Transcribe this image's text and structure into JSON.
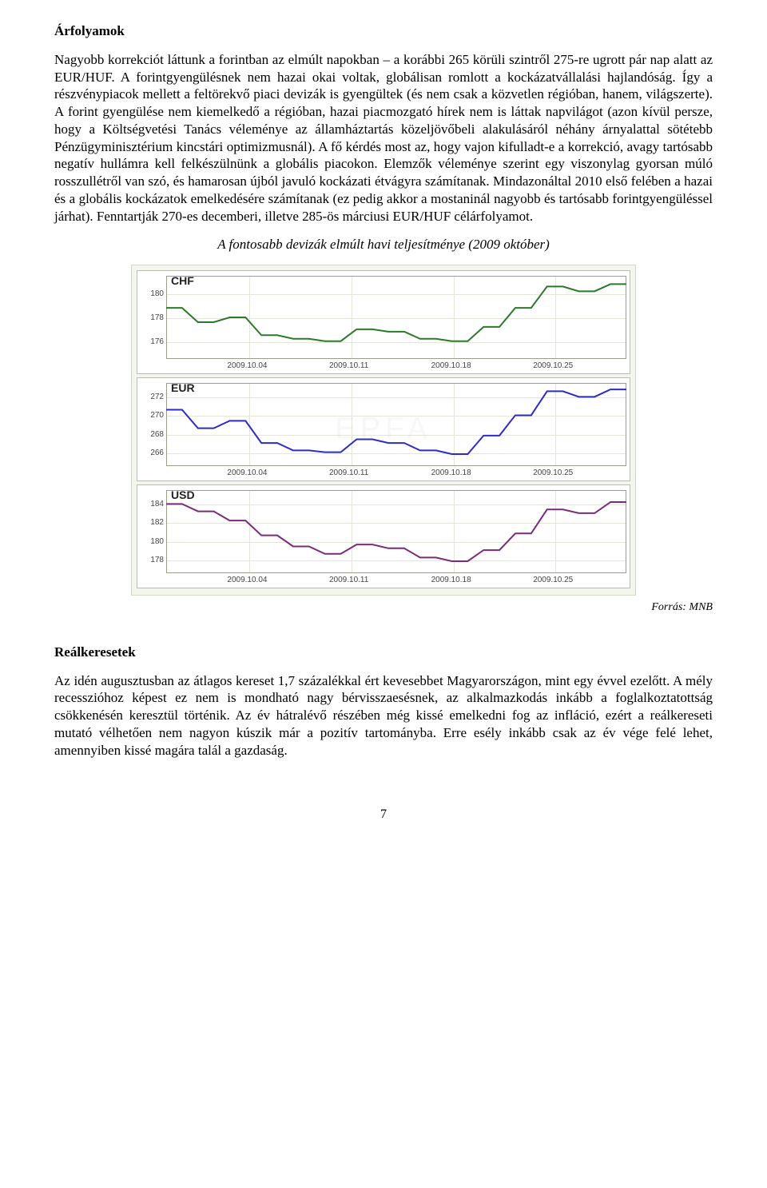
{
  "section1": {
    "heading": "Árfolyamok",
    "para": "Nagyobb korrekciót láttunk a forintban az elmúlt napokban – a korábbi 265 körüli szintről 275-re ugrott pár nap alatt az EUR/HUF. A forintgyengülésnek nem hazai okai voltak, globálisan romlott a kockázatvállalási hajlandóság. Így a részvénypiacok mellett a feltörekvő piaci devizák is gyengültek (és nem csak a közvetlen régióban, hanem, világszerte). A forint gyengülése nem kiemelkedő a régióban, hazai piacmozgató hírek nem is láttak napvilágot (azon kívül persze, hogy a Költségvetési Tanács véleménye az államháztartás közeljövőbeli alakulásáról néhány árnyalattal sötétebb Pénzügyminisztérium kincstári optimizmusnál). A fő kérdés most az, hogy vajon kifulladt-e a korrekció, avagy tartósabb negatív hullámra kell felkészülnünk a globális piacokon. Elemzők véleménye szerint egy viszonylag gyorsan múló rosszullétről van szó, és hamarosan újból javuló kockázati étvágyra számítanak. Mindazonáltal 2010 első felében a hazai és a globális kockázatok emelkedésére számítanak (ez pedig akkor a mostaninál nagyobb és tartósabb forintgyengüléssel járhat). Fenntartják 270-es decemberi, illetve 285-ös márciusi EUR/HUF célárfolyamot."
  },
  "chart_caption": "A fontosabb devizák elmúlt havi teljesítménye (2009 október)",
  "chart_common": {
    "x_labels": [
      "2009.10.04",
      "2009.10.11",
      "2009.10.18",
      "2009.10.25"
    ],
    "x_positions_pct": [
      18,
      40,
      62,
      84
    ],
    "background_color": "#f3f6ec",
    "border_color": "#b9beaf",
    "grid_color": "#e4e6db",
    "label_fontsize": 10,
    "title_fontsize": 14
  },
  "charts": [
    {
      "name": "chf",
      "title": "CHF",
      "type": "step-line",
      "color": "#2a7a2a",
      "line_width": 2,
      "y_ticks": [
        176,
        178,
        180
      ],
      "ylim": [
        174.5,
        181.5
      ],
      "data_y": [
        178.8,
        178.8,
        177.6,
        177.6,
        178.0,
        178.0,
        176.5,
        176.5,
        176.2,
        176.2,
        176.0,
        176.0,
        177.0,
        177.0,
        176.8,
        176.8,
        176.2,
        176.2,
        176.0,
        176.0,
        177.2,
        177.2,
        178.8,
        178.8,
        180.6,
        180.6,
        180.2,
        180.2,
        180.8,
        180.8
      ]
    },
    {
      "name": "eur",
      "title": "EUR",
      "type": "step-line",
      "color": "#2c2cc8",
      "line_width": 2,
      "y_ticks": [
        266,
        268,
        270,
        272
      ],
      "ylim": [
        264.5,
        273.5
      ],
      "data_y": [
        270.6,
        270.6,
        268.6,
        268.6,
        269.4,
        269.4,
        267.0,
        267.0,
        266.2,
        266.2,
        266.0,
        266.0,
        267.4,
        267.4,
        267.0,
        267.0,
        266.2,
        266.2,
        265.8,
        265.8,
        267.8,
        267.8,
        270.0,
        270.0,
        272.6,
        272.6,
        272.0,
        272.0,
        272.8,
        272.8
      ]
    },
    {
      "name": "usd",
      "title": "USD",
      "type": "step-line",
      "color": "#7a2c7a",
      "line_width": 2,
      "y_ticks": [
        178,
        180,
        182,
        184
      ],
      "ylim": [
        176.5,
        185.5
      ],
      "data_y": [
        184.0,
        184.0,
        183.2,
        183.2,
        182.2,
        182.2,
        180.6,
        180.6,
        179.4,
        179.4,
        178.6,
        178.6,
        179.6,
        179.6,
        179.2,
        179.2,
        178.2,
        178.2,
        177.8,
        177.8,
        179.0,
        179.0,
        180.8,
        180.8,
        183.4,
        183.4,
        183.0,
        183.0,
        184.2,
        184.2
      ]
    }
  ],
  "source": "Forrás: MNB",
  "section2": {
    "heading": "Reálkeresetek",
    "para": "Az idén augusztusban az átlagos kereset 1,7 százalékkal ért kevesebbet Magyarországon, mint egy évvel ezelőtt. A mély recesszióhoz képest ez nem is mondható nagy bérvisszaesésnek, az alkalmazkodás inkább a foglalkoztatottság csökkenésén keresztül történik. Az év hátralévő részében még kissé emelkedni fog az infláció, ezért a reálkereseti mutató vélhetően nem nagyon kúszik már a pozitív tartományba. Erre esély inkább csak az év vége felé lehet, amennyiben kissé magára talál a gazdaság."
  },
  "page_number": "7",
  "watermark": "EPFA"
}
